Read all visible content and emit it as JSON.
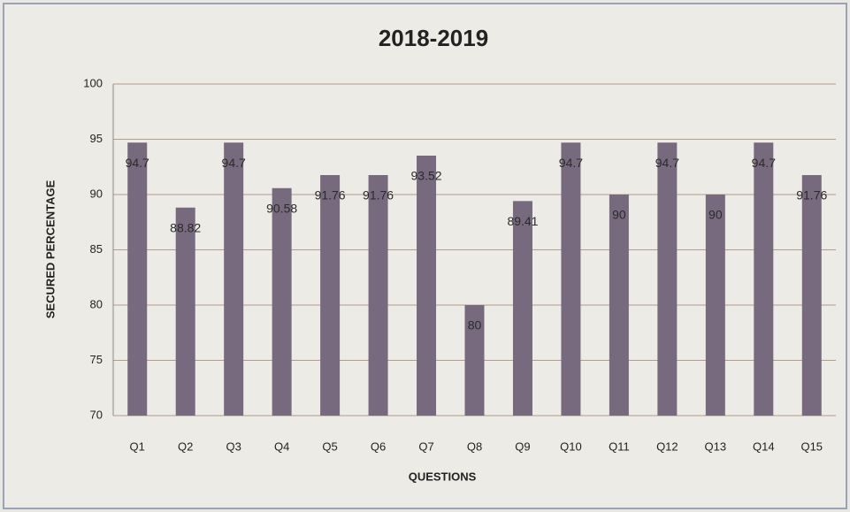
{
  "chart_data": {
    "type": "bar",
    "title": "2018-2019",
    "x_label": "QUESTIONS",
    "y_label": "SECURED PERCENTAGE",
    "categories": [
      "Q1",
      "Q2",
      "Q3",
      "Q4",
      "Q5",
      "Q6",
      "Q7",
      "Q8",
      "Q9",
      "Q10",
      "Q11",
      "Q12",
      "Q13",
      "Q14",
      "Q15"
    ],
    "values": [
      94.7,
      88.82,
      94.7,
      90.58,
      91.76,
      91.76,
      93.52,
      80,
      89.41,
      94.7,
      90,
      94.7,
      90,
      94.7,
      91.76
    ],
    "color": "#786a7e",
    "ylim": [
      70,
      100
    ],
    "yticks": [
      70,
      75,
      80,
      85,
      90,
      95,
      100
    ],
    "grid": true
  }
}
